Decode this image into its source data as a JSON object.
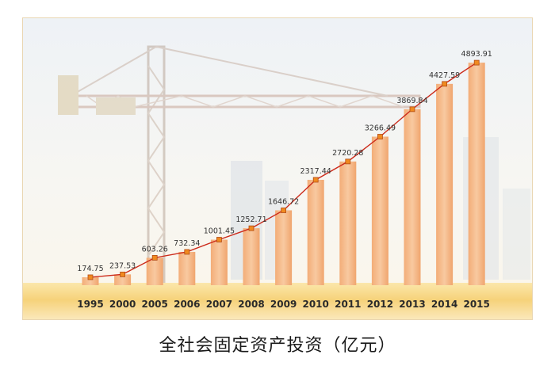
{
  "chart_data": {
    "type": "bar",
    "title": "全社会固定资产投资（亿元）",
    "categories": [
      "1995",
      "2000",
      "2005",
      "2006",
      "2007",
      "2008",
      "2009",
      "2010",
      "2011",
      "2012",
      "2013",
      "2014",
      "2015"
    ],
    "values": [
      174.75,
      237.53,
      603.26,
      732.34,
      1001.45,
      1252.71,
      1646.72,
      2317.44,
      2720.28,
      3266.49,
      3869.84,
      4427.59,
      4893.91
    ],
    "data_labels": [
      "174.75",
      "237.53",
      "603.26",
      "732.34",
      "1001.45",
      "1252.71",
      "1646.72",
      "2317.44",
      "2720.28",
      "3266.49",
      "3869.84",
      "4427.59",
      "4893.91"
    ],
    "overlay_line": true,
    "ylim": [
      0,
      5000
    ],
    "grid": false,
    "colors": {
      "bar": "#f5b98a",
      "line": "#cc2a1a",
      "marker": "#f08a20",
      "base_band": "#f6d47c"
    }
  }
}
